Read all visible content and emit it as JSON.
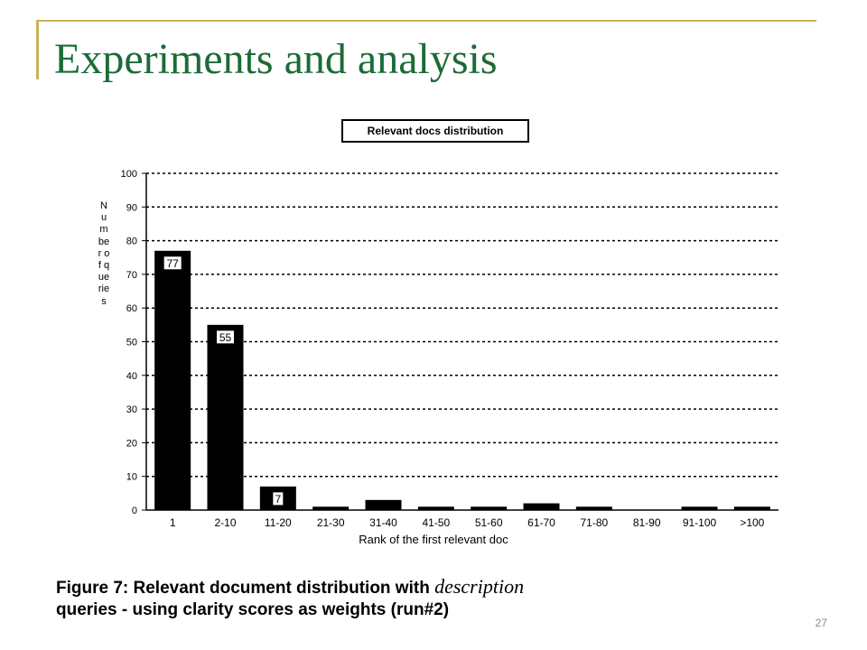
{
  "slide": {
    "title": "Experiments and analysis",
    "page_number": "27"
  },
  "caption": {
    "line1_prefix": "Figure 7:   Relevant document distribution with ",
    "line1_italic": "description",
    "line2": "queries - using clarity scores as weights (run#2)"
  },
  "chart_data": {
    "type": "bar",
    "title": "Relevant docs distribution",
    "xlabel": "Rank of the first relevant doc",
    "ylabel": "Number of queries",
    "categories": [
      "1",
      "2-10",
      "11-20",
      "21-30",
      "31-40",
      "41-50",
      "51-60",
      "61-70",
      "71-80",
      "81-90",
      "91-100",
      ">100"
    ],
    "values": [
      77,
      55,
      7,
      1,
      3,
      1,
      1,
      2,
      1,
      0,
      1,
      1
    ],
    "data_labels": [
      "77",
      "55",
      "7",
      "",
      "",
      "",
      "",
      "",
      "",
      "",
      "",
      ""
    ],
    "ylim": [
      0,
      100
    ],
    "yticks": [
      0,
      10,
      20,
      30,
      40,
      50,
      60,
      70,
      80,
      90,
      100
    ],
    "grid": true,
    "bar_color": "#000000"
  }
}
